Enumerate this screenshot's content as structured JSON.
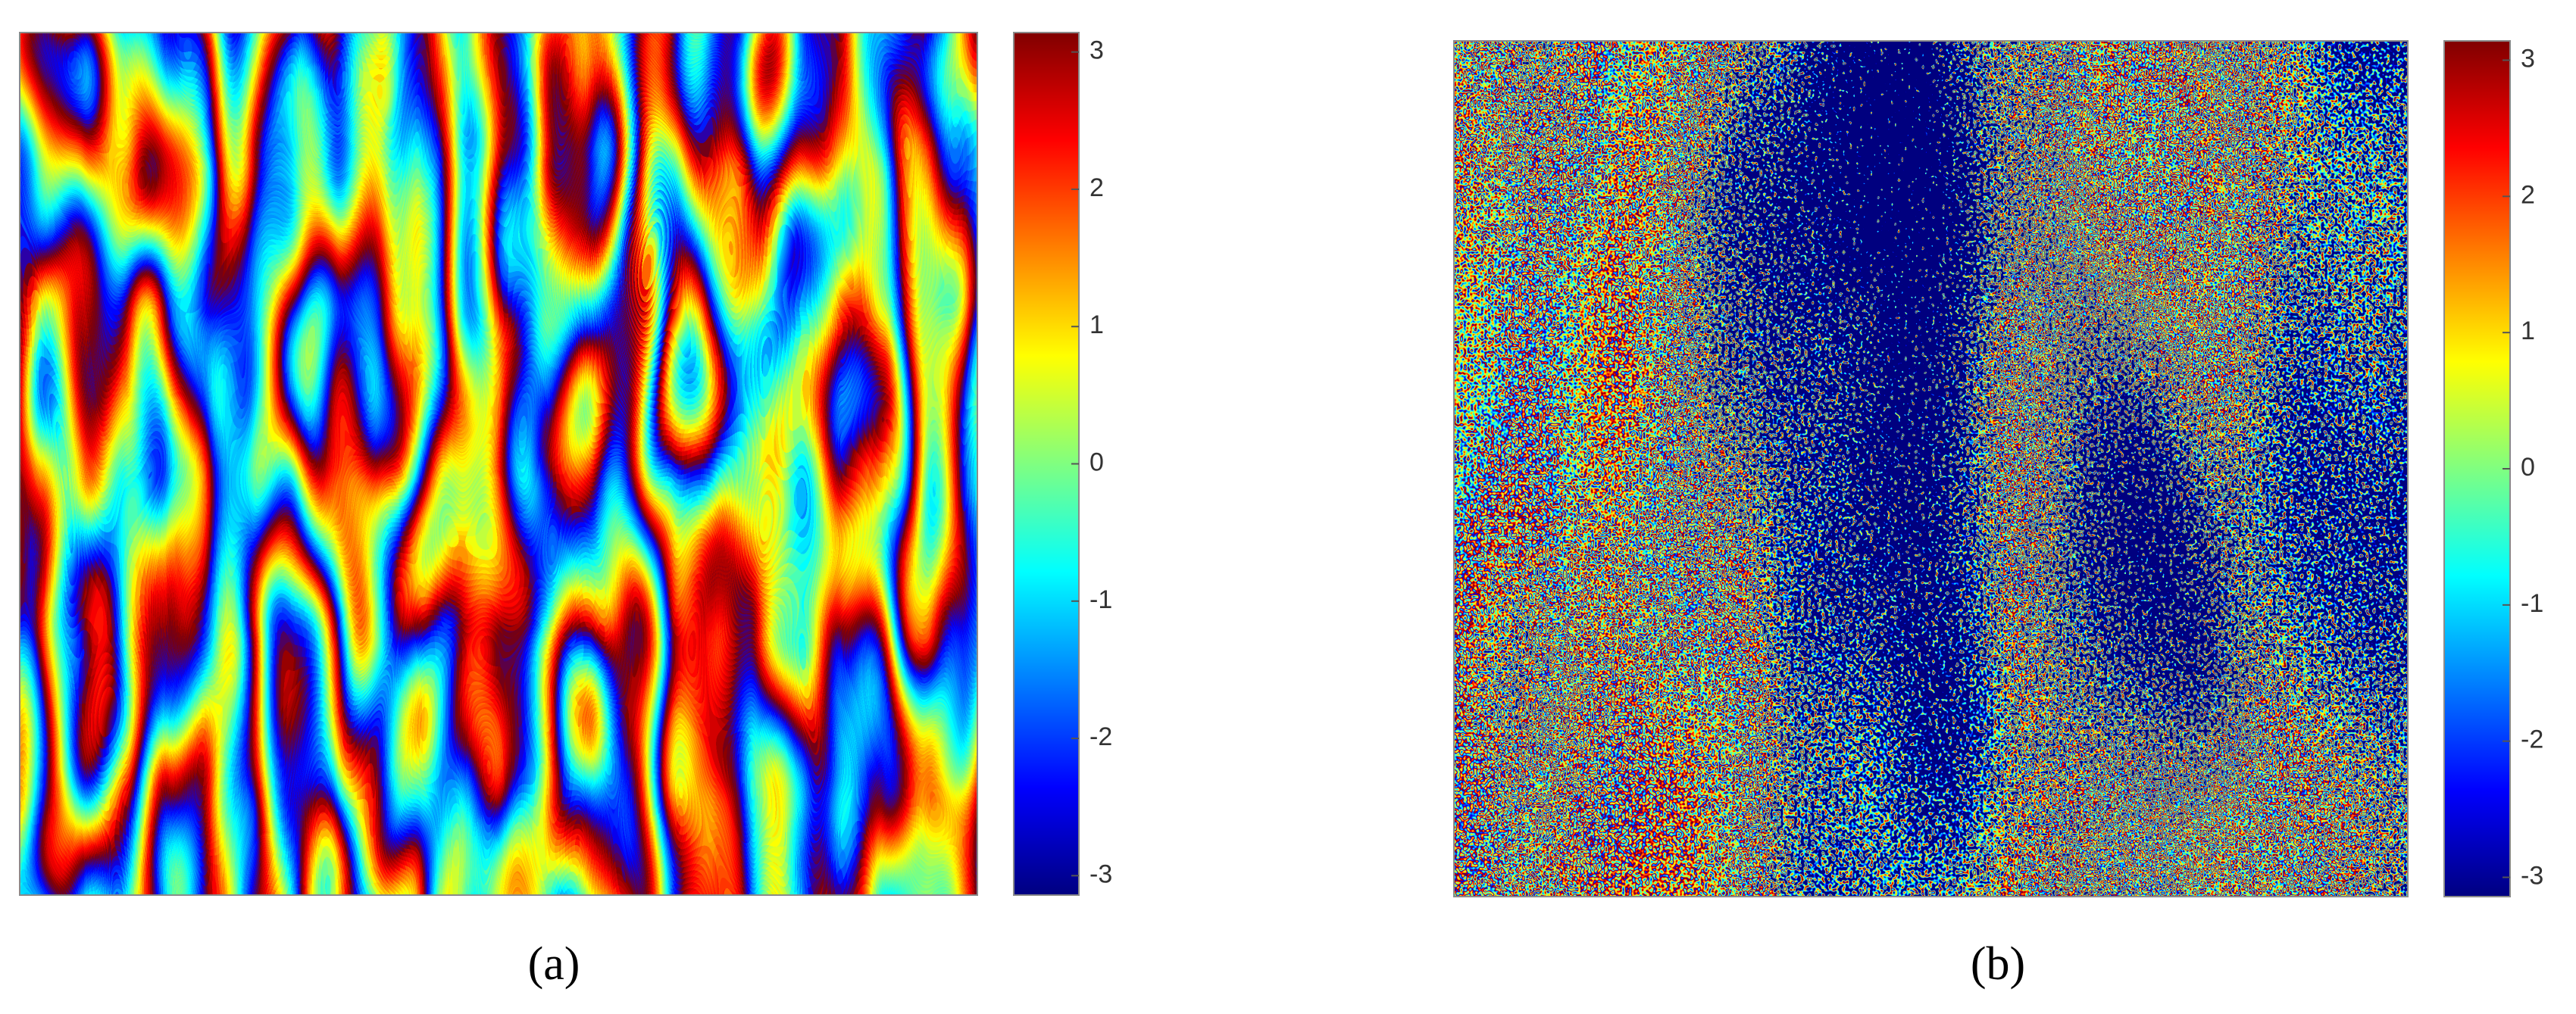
{
  "chart_data": [
    {
      "type": "heatmap",
      "label": "(a)",
      "colormap": "jet",
      "clim": [
        -3.1416,
        3.1416
      ],
      "cticks": [
        -3,
        -2,
        -1,
        0,
        1,
        2,
        3
      ]
    },
    {
      "type": "heatmap",
      "label": "(b)",
      "colormap": "jet",
      "clim": [
        -3.1416,
        3.1416
      ],
      "cticks": [
        -3,
        -2,
        -1,
        0,
        1,
        2,
        3
      ]
    }
  ]
}
